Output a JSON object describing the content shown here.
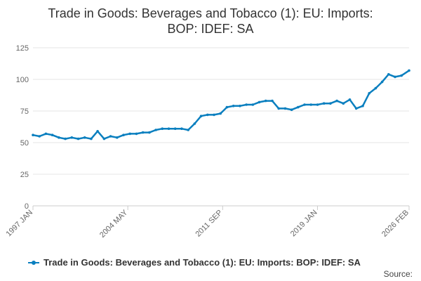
{
  "title_lines": [
    "Trade in Goods: Beverages and Tobacco (1): EU: Imports:",
    "BOP: IDEF: SA"
  ],
  "legend_label": "Trade in Goods: Beverages and Tobacco (1): EU: Imports: BOP: IDEF: SA",
  "source_label": "Source:",
  "colors": {
    "series": "#0a7fbf",
    "grid": "#e6e6e6",
    "axis": "#cccccc"
  },
  "chart_data": {
    "type": "line",
    "title": "Trade in Goods: Beverages and Tobacco (1): EU: Imports: BOP: IDEF: SA",
    "xlabel": "",
    "ylabel": "",
    "x_range": [
      "1997 JAN",
      "2026 FEB"
    ],
    "ylim": [
      0,
      125
    ],
    "y_ticks": [
      0,
      25,
      50,
      75,
      100,
      125
    ],
    "x_tick_labels": [
      "1997 JAN",
      "2004 MAY",
      "2011 SEP",
      "2019 JAN",
      "2026 FEB"
    ],
    "grid": true,
    "legend_position": "bottom",
    "series": [
      {
        "name": "Trade in Goods: Beverages and Tobacco (1): EU: Imports: BOP: IDEF: SA",
        "x": [
          "1997 JAN",
          "1997 JUL",
          "1998 JAN",
          "1998 JUL",
          "1999 JAN",
          "1999 JUL",
          "2000 JAN",
          "2000 JUL",
          "2001 JAN",
          "2001 JUL",
          "2002 JAN",
          "2002 JUL",
          "2003 JAN",
          "2003 JUL",
          "2004 JAN",
          "2004 JUL",
          "2005 JAN",
          "2005 JUL",
          "2006 JAN",
          "2006 JUL",
          "2007 JAN",
          "2007 JUL",
          "2008 JAN",
          "2008 JUL",
          "2009 JAN",
          "2009 JUL",
          "2010 JAN",
          "2010 JUL",
          "2011 JAN",
          "2011 JUL",
          "2012 JAN",
          "2012 JUL",
          "2013 JAN",
          "2013 JUL",
          "2014 JAN",
          "2014 JUL",
          "2015 JAN",
          "2015 JUL",
          "2016 JAN",
          "2016 JUL",
          "2017 JAN",
          "2017 JUL",
          "2018 JAN",
          "2018 JUL",
          "2019 JAN",
          "2019 JUL",
          "2020 JAN",
          "2020 JUL",
          "2021 JAN",
          "2021 JUL",
          "2022 JAN",
          "2022 JUL",
          "2023 JAN",
          "2023 JUL",
          "2024 JAN",
          "2024 JUL",
          "2025 JAN",
          "2025 JUL",
          "2026 FEB"
        ],
        "values": [
          56,
          55,
          57,
          56,
          54,
          53,
          54,
          53,
          54,
          53,
          59,
          53,
          55,
          54,
          56,
          57,
          57,
          58,
          58,
          60,
          61,
          61,
          61,
          61,
          60,
          65,
          71,
          72,
          72,
          73,
          78,
          79,
          79,
          80,
          80,
          82,
          83,
          83,
          77,
          77,
          76,
          78,
          80,
          80,
          80,
          81,
          81,
          83,
          81,
          84,
          77,
          79,
          89,
          93,
          98,
          104,
          102,
          103,
          107
        ]
      }
    ]
  }
}
